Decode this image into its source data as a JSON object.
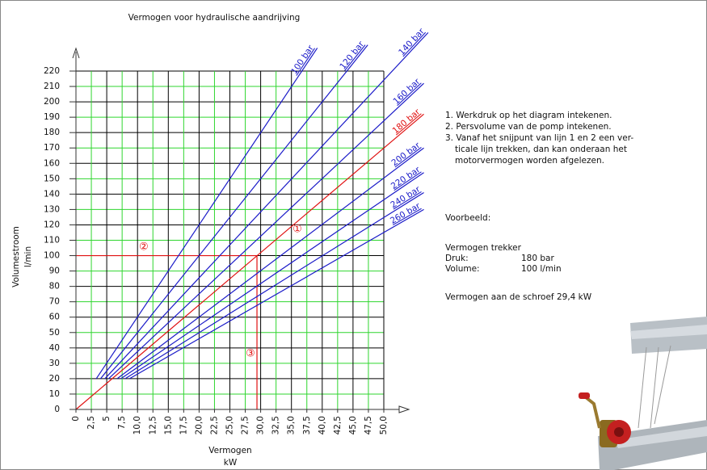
{
  "chart_data": {
    "type": "line",
    "title": "Vermogen voor hydraulische aandrijving",
    "y_label": [
      "Volumestroom",
      "l/min"
    ],
    "x_label": [
      "Vermogen",
      "kW"
    ],
    "xlim": [
      0,
      50
    ],
    "ylim": [
      0,
      220
    ],
    "xticks": [
      0,
      {
        "value": 2.5,
        "label": "2,5"
      },
      5,
      {
        "value": 7.5,
        "label": "7,5"
      },
      {
        "value": 10,
        "label": "10,0"
      },
      {
        "value": 12.5,
        "label": "12,5"
      },
      {
        "value": 15,
        "label": "15,0"
      },
      {
        "value": 17.5,
        "label": "17,5"
      },
      {
        "value": 20,
        "label": "20,0"
      },
      {
        "value": 22.5,
        "label": "22,5"
      },
      {
        "value": 25,
        "label": "25,0"
      },
      {
        "value": 27.5,
        "label": "27,5"
      },
      {
        "value": 30,
        "label": "30,0"
      },
      {
        "value": 32.5,
        "label": "32,5"
      },
      {
        "value": 35,
        "label": "35,0"
      },
      {
        "value": 37.5,
        "label": "37,5"
      },
      {
        "value": 40,
        "label": "40,0"
      },
      {
        "value": 42.5,
        "label": "42,5"
      },
      {
        "value": 45,
        "label": "45,0"
      },
      {
        "value": 47.5,
        "label": "47,5"
      },
      {
        "value": 50,
        "label": "50,0"
      }
    ],
    "yticks": [
      0,
      10,
      20,
      30,
      40,
      50,
      60,
      70,
      80,
      90,
      100,
      110,
      120,
      130,
      140,
      150,
      160,
      170,
      180,
      190,
      200,
      210,
      220
    ],
    "grid": true,
    "grid_colors": [
      "#000000",
      "#2fd62f"
    ],
    "series": [
      {
        "name": "100 bar",
        "color": "#1a1ac8",
        "x": [
          3.3,
          39.2
        ],
        "values": [
          20,
          235
        ]
      },
      {
        "name": "120 bar",
        "color": "#1a1ac8",
        "x": [
          4,
          47.4
        ],
        "values": [
          20,
          237
        ]
      },
      {
        "name": "140 bar",
        "color": "#1a1ac8",
        "x": [
          4.7,
          57.2
        ],
        "values": [
          20,
          245
        ]
      },
      {
        "name": "160 bar",
        "color": "#1a1ac8",
        "x": [
          5.3,
          56.5
        ],
        "values": [
          20,
          212
        ]
      },
      {
        "name": "180 bar",
        "color": "#e01010",
        "x": [
          0,
          56.5
        ],
        "values": [
          0,
          192
        ]
      },
      {
        "name": "200 bar",
        "color": "#1a1ac8",
        "x": [
          6.7,
          56.5
        ],
        "values": [
          20,
          170
        ]
      },
      {
        "name": "220 bar",
        "color": "#1a1ac8",
        "x": [
          7.3,
          56.5
        ],
        "values": [
          20,
          154
        ]
      },
      {
        "name": "240 bar",
        "color": "#1a1ac8",
        "x": [
          8,
          56.5
        ],
        "values": [
          20,
          141
        ]
      },
      {
        "name": "260 bar",
        "color": "#1a1ac8",
        "x": [
          8.7,
          56.5
        ],
        "values": [
          20,
          130
        ]
      }
    ],
    "guides": [
      {
        "color": "#e01010",
        "x": [
          0,
          29.4
        ],
        "values": [
          100,
          100
        ]
      },
      {
        "color": "#e01010",
        "x": [
          29.4,
          29.4
        ],
        "values": [
          100,
          0
        ]
      }
    ],
    "markers": [
      "①",
      "②",
      "③"
    ]
  },
  "notes": {
    "steps": [
      "1. Werkdruk op het diagram intekenen.",
      "2. Persvolume van de pomp intekenen.",
      "3. Vanaf het snijpunt van lijn 1 en 2 een ver-",
      "ticale lijn trekken, dan kan onderaan het",
      "motorvermogen worden afgelezen."
    ],
    "example_title": "Voorbeeld:",
    "example_heading": "Vermogen trekker",
    "rows": [
      [
        "Druk:",
        "180 bar"
      ],
      [
        "Volume:",
        "100 l/min"
      ]
    ],
    "result": "Vermogen aan de schroef 29,4 kW"
  }
}
